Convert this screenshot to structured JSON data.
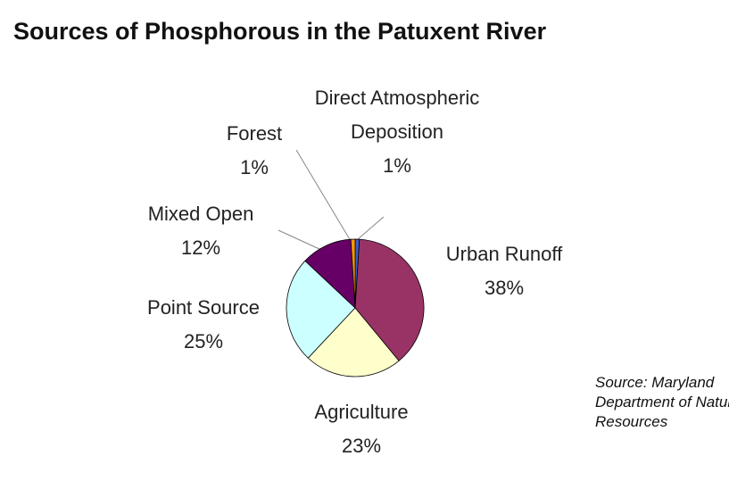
{
  "chart_data": {
    "type": "pie",
    "title": "Sources of Phosphorous in the Patuxent River",
    "categories": [
      "Direct Atmospheric Deposition",
      "Urban Runoff",
      "Agriculture",
      "Point Source",
      "Mixed Open",
      "Forest"
    ],
    "values": [
      1,
      38,
      23,
      25,
      12,
      1
    ],
    "value_labels": [
      "1%",
      "38%",
      "23%",
      "25%",
      "12%",
      "1%"
    ],
    "colors": [
      "#3a5fcd",
      "#993366",
      "#ffffcc",
      "#ccffff",
      "#660066",
      "#ff9900"
    ],
    "source": "Source: Maryland Department of Natural Resources"
  }
}
